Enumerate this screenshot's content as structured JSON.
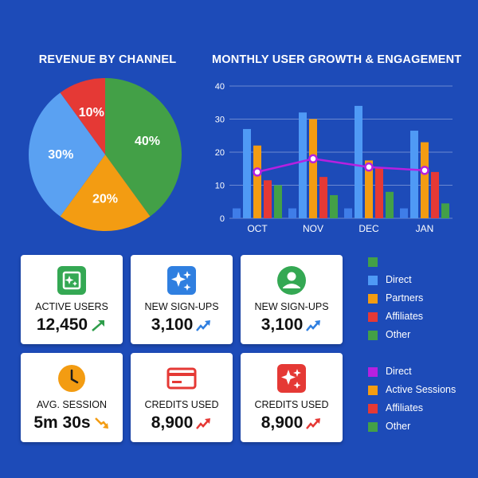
{
  "pie_title": "REVENUE BY CHANNEL",
  "bar_title": "MONTHLY USER GROWTH & ENGAGEMENT",
  "chart_data": [
    {
      "type": "pie",
      "title": "REVENUE BY CHANNEL",
      "slices": [
        {
          "label": "40%",
          "value": 40,
          "color": "#43a047"
        },
        {
          "label": "20%",
          "value": 20,
          "color": "#f39c12"
        },
        {
          "label": "30%",
          "value": 30,
          "color": "#5aa1f2"
        },
        {
          "label": "10%",
          "value": 10,
          "color": "#e53935"
        }
      ]
    },
    {
      "type": "bar",
      "title": "MONTHLY USER GROWTH & ENGAGEMENT",
      "categories": [
        "OCT",
        "NOV",
        "DEC",
        "JAN"
      ],
      "ylim": [
        0,
        40
      ],
      "yticks": [
        "0",
        "10",
        "20",
        "30",
        "40"
      ],
      "grid": true,
      "series": [
        {
          "color": "#3f7de8",
          "values": [
            3,
            3,
            3,
            3
          ]
        },
        {
          "color": "#4f9af5",
          "values": [
            27,
            32,
            34,
            26.5
          ]
        },
        {
          "color": "#f39c12",
          "values": [
            22,
            30,
            17.5,
            23
          ]
        },
        {
          "color": "#e53935",
          "values": [
            11.5,
            12.5,
            15.5,
            14
          ]
        },
        {
          "color": "#43a047",
          "values": [
            10,
            7,
            8,
            4.5
          ]
        }
      ],
      "line_series": {
        "color": "#b620e0",
        "values": [
          14,
          18,
          15.5,
          14.5
        ]
      }
    }
  ],
  "cards": [
    {
      "label": "ACTIVE USERS",
      "value": "12,450",
      "icon": "image-sparkle-icon",
      "icon_color": "#34a853",
      "trend": "up",
      "trend_color": "#2e9d4a"
    },
    {
      "label": "NEW SIGN-UPS",
      "value": "3,100",
      "icon": "sparkle-icon",
      "icon_color": "#2f7fe0",
      "trend": "up-wavy",
      "trend_color": "#2f7fe0"
    },
    {
      "label": "NEW SIGN-UPS",
      "value": "3,100",
      "icon": "user-icon",
      "icon_color": "#34a853",
      "trend": "up-wavy",
      "trend_color": "#2f7fe0"
    },
    {
      "label": "AVG. SESSION",
      "value": "5m 30s",
      "icon": "clock-icon",
      "icon_color": "#f39c12",
      "trend": "down",
      "trend_color": "#f39c12"
    },
    {
      "label": "CREDITS USED",
      "value": "8,900",
      "icon": "credit-card-icon",
      "icon_color": "#e53935",
      "trend": "up-wavy",
      "trend_color": "#e53935"
    },
    {
      "label": "CREDITS USED",
      "value": "8,900",
      "icon": "sparkle-icon",
      "icon_color": "#e53935",
      "trend": "up-wavy",
      "trend_color": "#e53935"
    }
  ],
  "legend_1": [
    {
      "label": "",
      "color": "#43a047"
    },
    {
      "label": "Direct",
      "color": "#4f9af5"
    },
    {
      "label": "Partners",
      "color": "#f39c12"
    },
    {
      "label": "Affiliates",
      "color": "#e53935"
    },
    {
      "label": "Other",
      "color": "#43a047"
    }
  ],
  "legend_2": [
    {
      "label": "Direct",
      "color": "#b620e0"
    },
    {
      "label": "Active Sessions",
      "color": "#f39c12"
    },
    {
      "label": "Affiliates",
      "color": "#e53935"
    },
    {
      "label": "Other",
      "color": "#43a047"
    }
  ]
}
